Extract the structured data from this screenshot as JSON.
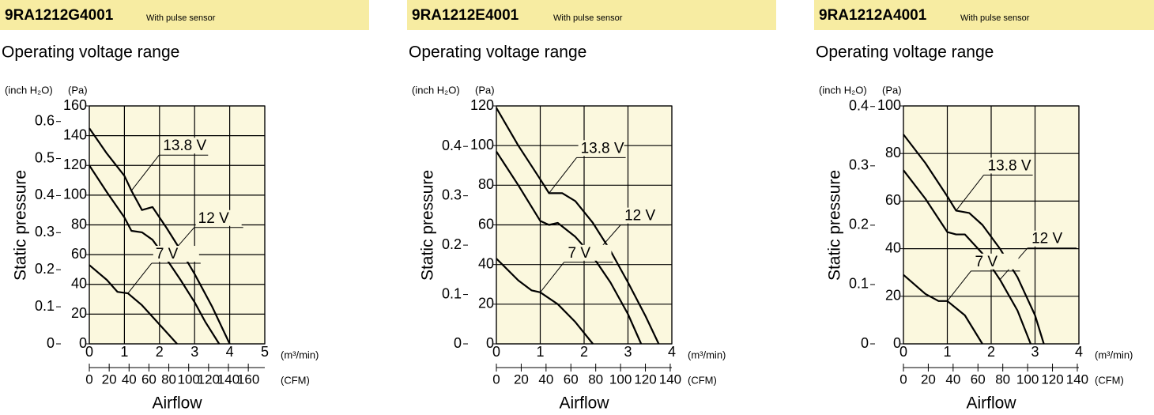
{
  "chart_data": [
    {
      "type": "line",
      "title": "9RA1212G4001",
      "subtitle": "With pulse sensor",
      "heading": "Operating voltage range",
      "xlabel": "Airflow",
      "ylabel": "Static pressure",
      "x_unit": "(m³/min)",
      "x2_unit": "(CFM)",
      "y_unit": "(Pa)",
      "y2_unit": "(inch H₂O)",
      "xlim": [
        0,
        5
      ],
      "xticks": [
        0,
        1,
        2,
        3,
        4,
        5
      ],
      "x2lim": [
        0,
        176.6
      ],
      "x2ticks": [
        0,
        20,
        40,
        60,
        80,
        100,
        120,
        140,
        160
      ],
      "ylim": [
        0,
        160
      ],
      "yticks": [
        0,
        20,
        40,
        60,
        80,
        100,
        120,
        140,
        160
      ],
      "y2lim": [
        0,
        0.642
      ],
      "y2ticks": [
        0,
        0.1,
        0.2,
        0.3,
        0.4,
        0.5,
        0.6
      ],
      "grid": true,
      "series": [
        {
          "name": "13.8 V",
          "color": "#000000",
          "x": [
            0,
            0.5,
            1.0,
            1.2,
            1.5,
            1.8,
            2.2,
            2.6,
            3.0,
            3.5,
            4.0
          ],
          "values": [
            145,
            128,
            113,
            103,
            90,
            92,
            78,
            63,
            47,
            25,
            0
          ]
        },
        {
          "name": "12 V",
          "color": "#000000",
          "x": [
            0,
            0.5,
            1.0,
            1.2,
            1.5,
            1.8,
            2.2,
            2.6,
            3.0,
            3.3,
            3.7
          ],
          "values": [
            120,
            102,
            85,
            76,
            75,
            70,
            57,
            43,
            28,
            15,
            0
          ]
        },
        {
          "name": "7 V",
          "color": "#000000",
          "x": [
            0,
            0.5,
            0.8,
            1.1,
            1.5,
            2.0,
            2.5
          ],
          "values": [
            53,
            43,
            35,
            34,
            26,
            13,
            0
          ]
        }
      ]
    },
    {
      "type": "line",
      "title": "9RA1212E4001",
      "subtitle": "With pulse sensor",
      "heading": "Operating voltage range",
      "xlabel": "Airflow",
      "ylabel": "Static pressure",
      "x_unit": "(m³/min)",
      "x2_unit": "(CFM)",
      "y_unit": "(Pa)",
      "y2_unit": "(inch H₂O)",
      "xlim": [
        0,
        4
      ],
      "xticks": [
        0,
        1,
        2,
        3,
        4
      ],
      "x2lim": [
        0,
        141.3
      ],
      "x2ticks": [
        0,
        20,
        40,
        60,
        80,
        100,
        120,
        140
      ],
      "ylim": [
        0,
        120
      ],
      "yticks": [
        0,
        20,
        40,
        60,
        80,
        100,
        120
      ],
      "y2lim": [
        0,
        0.482
      ],
      "y2ticks": [
        0,
        0.1,
        0.2,
        0.3,
        0.4
      ],
      "grid": true,
      "series": [
        {
          "name": "13.8 V",
          "color": "#000000",
          "x": [
            0,
            0.5,
            1.0,
            1.2,
            1.5,
            1.8,
            2.2,
            2.6,
            3.0,
            3.4,
            3.7
          ],
          "values": [
            119,
            100,
            83,
            76,
            76,
            72,
            61,
            47,
            31,
            14,
            0
          ]
        },
        {
          "name": "12 V",
          "color": "#000000",
          "x": [
            0,
            0.5,
            1.0,
            1.2,
            1.4,
            1.8,
            2.2,
            2.6,
            3.0,
            3.3
          ],
          "values": [
            97,
            80,
            62,
            60,
            61,
            54,
            44,
            31,
            15,
            0
          ]
        },
        {
          "name": "7 V",
          "color": "#000000",
          "x": [
            0,
            0.5,
            0.8,
            1.0,
            1.4,
            1.8,
            2.2
          ],
          "values": [
            43,
            32,
            27,
            26,
            20,
            11,
            0
          ]
        }
      ]
    },
    {
      "type": "line",
      "title": "9RA1212A4001",
      "subtitle": "With pulse sensor",
      "heading": "Operating voltage range",
      "xlabel": "Airflow",
      "ylabel": "Static pressure",
      "x_unit": "(m³/min)",
      "x2_unit": "(CFM)",
      "y_unit": "(Pa)",
      "y2_unit": "(inch H₂O)",
      "xlim": [
        0,
        4
      ],
      "xticks": [
        0,
        1,
        2,
        3,
        4
      ],
      "x2lim": [
        0,
        141.3
      ],
      "x2ticks": [
        0,
        20,
        40,
        60,
        80,
        100,
        120,
        140
      ],
      "ylim": [
        0,
        100
      ],
      "yticks": [
        0,
        20,
        40,
        60,
        80,
        100
      ],
      "y2lim": [
        0,
        0.401
      ],
      "y2ticks": [
        0,
        0.1,
        0.2,
        0.3,
        0.4
      ],
      "grid": true,
      "series": [
        {
          "name": "13.8 V",
          "color": "#000000",
          "x": [
            0,
            0.5,
            1.0,
            1.2,
            1.5,
            1.8,
            2.2,
            2.6,
            3.0,
            3.2
          ],
          "values": [
            88,
            76,
            62,
            56,
            55,
            50,
            40,
            28,
            12,
            0
          ]
        },
        {
          "name": "12 V",
          "color": "#000000",
          "x": [
            0,
            0.5,
            1.0,
            1.2,
            1.4,
            1.8,
            2.2,
            2.6,
            2.9
          ],
          "values": [
            73,
            61,
            47,
            46,
            46,
            38,
            27,
            14,
            0
          ]
        },
        {
          "name": "7 V",
          "color": "#000000",
          "x": [
            0,
            0.5,
            0.8,
            1.0,
            1.4,
            1.8
          ],
          "values": [
            29,
            21,
            18,
            18,
            12,
            0
          ]
        }
      ]
    }
  ]
}
